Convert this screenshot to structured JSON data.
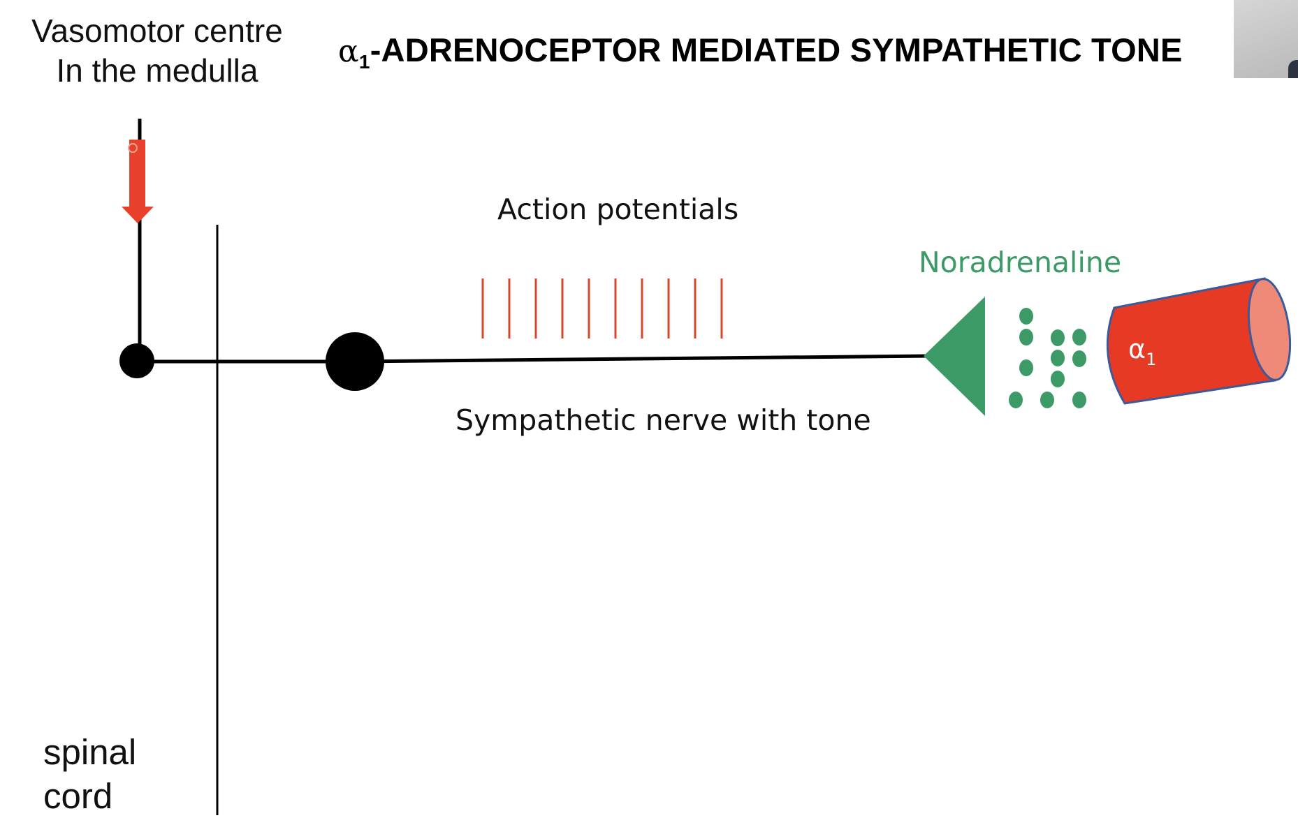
{
  "slide": {
    "title_alpha": "α",
    "title_subscript": "1",
    "title_rest": "-ADRENOCEPTOR MEDIATED SYMPATHETIC TONE",
    "vasomotor_line1": "Vasomotor centre",
    "vasomotor_line2": "In the medulla",
    "action_potentials": "Action potentials",
    "sympathetic_nerve": "Sympathetic nerve with tone",
    "noradrenaline": "Noradrenaline",
    "receptor_alpha": "α",
    "receptor_subscript": "1",
    "spinal_line1": "spinal",
    "spinal_line2": "cord"
  },
  "colors": {
    "neuron_line": "#000000",
    "arrow": "#e8402a",
    "action_potential_ticks": "#d9462f",
    "noradrenaline_green": "#3c9a66",
    "receptor_fill": "#e63a25",
    "receptor_end": "#f08a78",
    "receptor_outline": "#3b5a9a"
  },
  "diagram": {
    "action_potential_count": 10,
    "noradrenaline_dot_count": 11
  }
}
